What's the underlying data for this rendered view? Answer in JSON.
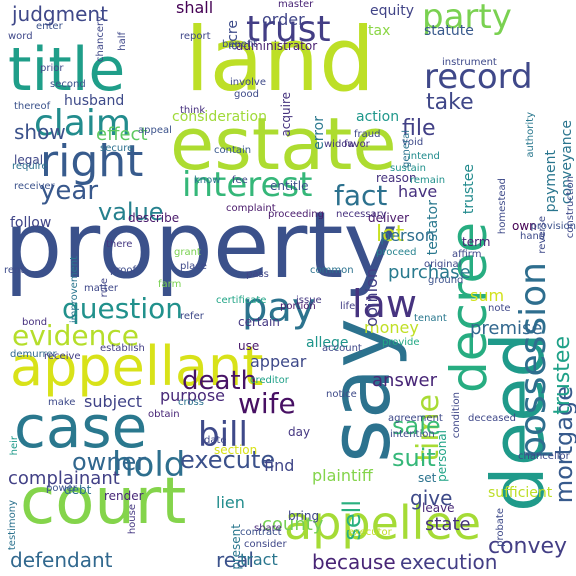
{
  "words": [
    {
      "text": "property",
      "color": "#3b518b"
    },
    {
      "text": "land",
      "color": "#bddf26"
    },
    {
      "text": "estate",
      "color": "#addc30"
    },
    {
      "text": "court",
      "color": "#84d44b"
    },
    {
      "text": "say",
      "color": "#2c728e"
    },
    {
      "text": "deed",
      "color": "#1f9a8a"
    },
    {
      "text": "title",
      "color": "#1f9e89"
    },
    {
      "text": "appellant",
      "color": "#d8e219"
    },
    {
      "text": "case",
      "color": "#2a788e"
    },
    {
      "text": "appellee",
      "color": "#a5db36"
    },
    {
      "text": "right",
      "color": "#375b8d"
    },
    {
      "text": "claim",
      "color": "#228c8d"
    },
    {
      "text": "decree",
      "color": "#27ad81"
    },
    {
      "text": "interest",
      "color": "#35b779"
    },
    {
      "text": "possession",
      "color": "#2e6e8e"
    },
    {
      "text": "trust",
      "color": "#433e85"
    },
    {
      "text": "party",
      "color": "#7ad151"
    },
    {
      "text": "record",
      "color": "#3f4889"
    },
    {
      "text": "pay",
      "color": "#2c738e"
    },
    {
      "text": "law",
      "color": "#46337f"
    },
    {
      "text": "bill",
      "color": "#3e4989"
    },
    {
      "text": "hold",
      "color": "#2e6f8e"
    },
    {
      "text": "wife",
      "color": "#471063"
    },
    {
      "text": "time",
      "color": "#a8db34"
    },
    {
      "text": "mortgage",
      "color": "#375a8c"
    },
    {
      "text": "question",
      "color": "#21918c"
    },
    {
      "text": "evidence",
      "color": "#b5de2b"
    },
    {
      "text": "fact",
      "color": "#2c718e"
    },
    {
      "text": "value",
      "color": "#26818e"
    },
    {
      "text": "year",
      "color": "#38588c"
    },
    {
      "text": "death",
      "color": "#471365"
    },
    {
      "text": "execute",
      "color": "#3b518b"
    },
    {
      "text": "sale",
      "color": "#3bbb75"
    },
    {
      "text": "suit",
      "color": "#35b779"
    },
    {
      "text": "owner",
      "color": "#31678e"
    },
    {
      "text": "sell",
      "color": "#2ab07f"
    },
    {
      "text": "defendant",
      "color": "#31688e"
    },
    {
      "text": "real",
      "color": "#3b528b"
    },
    {
      "text": "convey",
      "color": "#433e85"
    },
    {
      "text": "execution",
      "color": "#433e85"
    },
    {
      "text": "because",
      "color": "#482576"
    },
    {
      "text": "trustee",
      "color": "#1fa188"
    },
    {
      "text": "file",
      "color": "#424086"
    },
    {
      "text": "take",
      "color": "#3f4788"
    },
    {
      "text": "show",
      "color": "#3b528b"
    },
    {
      "text": "lot",
      "color": "#c8e020"
    },
    {
      "text": "complainant",
      "color": "#424186"
    },
    {
      "text": "give",
      "color": "#3e4a89"
    },
    {
      "text": "county",
      "color": "#75d054"
    },
    {
      "text": "tract",
      "color": "#2a768e"
    },
    {
      "text": "judgment",
      "color": "#3f4889"
    },
    {
      "text": "shall",
      "color": "#440154"
    },
    {
      "text": "effect",
      "color": "#5ec962"
    },
    {
      "text": "subject",
      "color": "#404387"
    },
    {
      "text": "purpose",
      "color": "#482979"
    },
    {
      "text": "premise",
      "color": "#31678e"
    },
    {
      "text": "purchase",
      "color": "#297a8e"
    },
    {
      "text": "answer",
      "color": "#482677"
    },
    {
      "text": "plaintiff",
      "color": "#84d44b"
    },
    {
      "text": "money",
      "color": "#c0df25"
    },
    {
      "text": "appear",
      "color": "#3e4989"
    },
    {
      "text": "allege",
      "color": "#1f958b"
    },
    {
      "text": "find",
      "color": "#404688"
    },
    {
      "text": "state",
      "color": "#46327e"
    },
    {
      "text": "lien",
      "color": "#228d8d"
    },
    {
      "text": "person",
      "color": "#2e6e8e"
    },
    {
      "text": "sum",
      "color": "#d2e21b"
    },
    {
      "text": "have",
      "color": "#46307e"
    },
    {
      "text": "opinion",
      "color": "#433e85"
    },
    {
      "text": "acre",
      "color": "#3e4c8a"
    },
    {
      "text": "equity",
      "color": "#414487"
    },
    {
      "text": "tax",
      "color": "#8bd646"
    },
    {
      "text": "statute",
      "color": "#38598c"
    },
    {
      "text": "conveyance",
      "color": "#2b758e"
    },
    {
      "text": "payment",
      "color": "#2a768e"
    },
    {
      "text": "testator",
      "color": "#2a788e"
    },
    {
      "text": "order",
      "color": "#404588"
    },
    {
      "text": "trustee",
      "color": "#228b8d"
    },
    {
      "text": "husband",
      "color": "#3e4a89"
    },
    {
      "text": "consideration",
      "color": "#a0da39"
    },
    {
      "text": "action",
      "color": "#1f988b"
    },
    {
      "text": "error",
      "color": "#2a788e"
    },
    {
      "text": "administrator",
      "color": "#481f70"
    },
    {
      "text": "benefit",
      "color": "#3d4d8a"
    },
    {
      "text": "acquire",
      "color": "#46337f"
    },
    {
      "text": "think",
      "color": "#46307e"
    },
    {
      "text": "legal",
      "color": "#3f4788"
    },
    {
      "text": "describe",
      "color": "#48186a"
    },
    {
      "text": "follow",
      "color": "#404588"
    },
    {
      "text": "entitle",
      "color": "#3b518b"
    },
    {
      "text": "deliver",
      "color": "#481769"
    },
    {
      "text": "term",
      "color": "#482475"
    },
    {
      "text": "reason",
      "color": "#46327e"
    },
    {
      "text": "section",
      "color": "#d8e219"
    },
    {
      "text": "personal",
      "color": "#20a386"
    },
    {
      "text": "present",
      "color": "#2a778e"
    },
    {
      "text": "set",
      "color": "#2c738e"
    },
    {
      "text": "leave",
      "color": "#482878"
    },
    {
      "text": "bring",
      "color": "#404688"
    },
    {
      "text": "date",
      "color": "#3f4788"
    },
    {
      "text": "day",
      "color": "#453781"
    },
    {
      "text": "certain",
      "color": "#453882"
    },
    {
      "text": "use",
      "color": "#48186a"
    },
    {
      "text": "bond",
      "color": "#46307e"
    },
    {
      "text": "heir",
      "color": "#1f9a8a"
    },
    {
      "text": "render",
      "color": "#482878"
    },
    {
      "text": "debt",
      "color": "#2d708e"
    },
    {
      "text": "own",
      "color": "#440154"
    },
    {
      "text": "sufficient",
      "color": "#bddf26"
    },
    {
      "text": "master",
      "color": "#482475"
    },
    {
      "text": "enter",
      "color": "#3b528b"
    },
    {
      "text": "word",
      "color": "#3f4889"
    },
    {
      "text": "prior",
      "color": "#3e4989"
    },
    {
      "text": "thereof",
      "color": "#3b528b"
    },
    {
      "text": "secure",
      "color": "#2d708e"
    },
    {
      "text": "require",
      "color": "#2c728e"
    },
    {
      "text": "complaint",
      "color": "#48186a"
    },
    {
      "text": "proceeding",
      "color": "#481a6c"
    },
    {
      "text": "necessary",
      "color": "#46307e"
    },
    {
      "text": "improvement",
      "color": "#2a768e"
    },
    {
      "text": "grant",
      "color": "#7ad151"
    },
    {
      "text": "proof",
      "color": "#3e4c8a"
    },
    {
      "text": "rule",
      "color": "#404588"
    },
    {
      "text": "there",
      "color": "#453882"
    },
    {
      "text": "farm",
      "color": "#7ad151"
    },
    {
      "text": "matter",
      "color": "#3f4889"
    },
    {
      "text": "report",
      "color": "#3f4788"
    },
    {
      "text": "rent",
      "color": "#3e4c8a"
    },
    {
      "text": "testimony",
      "color": "#2c728e"
    },
    {
      "text": "power",
      "color": "#3b528b"
    },
    {
      "text": "demurrer",
      "color": "#31688e"
    },
    {
      "text": "receive",
      "color": "#433e85"
    },
    {
      "text": "establish",
      "color": "#433e85"
    },
    {
      "text": "creditor",
      "color": "#1fa088"
    },
    {
      "text": "cross",
      "color": "#2c728e"
    },
    {
      "text": "make",
      "color": "#3e4a89"
    },
    {
      "text": "obtain",
      "color": "#482677"
    },
    {
      "text": "house",
      "color": "#453882"
    },
    {
      "text": "share",
      "color": "#482878"
    },
    {
      "text": "contract",
      "color": "#3b528b"
    },
    {
      "text": "consider",
      "color": "#3f4788"
    },
    {
      "text": "executor",
      "color": "#c2df23"
    },
    {
      "text": "refer",
      "color": "#3e4989"
    },
    {
      "text": "account",
      "color": "#3f4889"
    },
    {
      "text": "issue",
      "color": "#453882"
    },
    {
      "text": "portion",
      "color": "#48196b"
    },
    {
      "text": "life",
      "color": "#433e85"
    },
    {
      "text": "certificate",
      "color": "#20a486"
    },
    {
      "text": "pass",
      "color": "#404588"
    },
    {
      "text": "common",
      "color": "#2c728e"
    },
    {
      "text": "proceed",
      "color": "#26828e"
    },
    {
      "text": "original",
      "color": "#3f4889"
    },
    {
      "text": "ground",
      "color": "#3b528b"
    },
    {
      "text": "affirm",
      "color": "#3f4889"
    },
    {
      "text": "tenant",
      "color": "#2a788e"
    },
    {
      "text": "note",
      "color": "#3f4889"
    },
    {
      "text": "provide",
      "color": "#22a884"
    },
    {
      "text": "provision",
      "color": "#3b518b"
    },
    {
      "text": "reverse",
      "color": "#3e4989"
    },
    {
      "text": "hand",
      "color": "#3e4c8a"
    },
    {
      "text": "homestead",
      "color": "#3e4a89"
    },
    {
      "text": "remain",
      "color": "#21918c"
    },
    {
      "text": "sustain",
      "color": "#21918c"
    },
    {
      "text": "fraud",
      "color": "#3f4889"
    },
    {
      "text": "widow",
      "color": "#453781"
    },
    {
      "text": "favor",
      "color": "#46307e"
    },
    {
      "text": "void",
      "color": "#3e4989"
    },
    {
      "text": "intend",
      "color": "#228b8d"
    },
    {
      "text": "authority",
      "color": "#2a788e"
    },
    {
      "text": "construction",
      "color": "#3e4989"
    },
    {
      "text": "general",
      "color": "#2c728e"
    },
    {
      "text": "instrument",
      "color": "#3e4989"
    },
    {
      "text": "contain",
      "color": "#38588c"
    },
    {
      "text": "good",
      "color": "#3e4a89"
    },
    {
      "text": "involve",
      "color": "#3e4a89"
    },
    {
      "text": "appeal",
      "color": "#3b528b"
    },
    {
      "text": "chancery",
      "color": "#3f4889"
    },
    {
      "text": "half",
      "color": "#3f4889"
    },
    {
      "text": "second",
      "color": "#3b528b"
    },
    {
      "text": "receiver",
      "color": "#3b528b"
    },
    {
      "text": "chancellor",
      "color": "#3e4989"
    },
    {
      "text": "probate",
      "color": "#3e4a89"
    },
    {
      "text": "deceased",
      "color": "#3f4889"
    },
    {
      "text": "condition",
      "color": "#3f4889"
    },
    {
      "text": "agreement",
      "color": "#3e4989"
    },
    {
      "text": "intention",
      "color": "#3e4989"
    },
    {
      "text": "notice",
      "color": "#3e4a89"
    },
    {
      "text": "know",
      "color": "#2c728e"
    },
    {
      "text": "fee",
      "color": "#3e4989"
    },
    {
      "text": "place",
      "color": "#3e4989"
    },
    {
      "text": "line",
      "color": "#3e4989"
    }
  ]
}
